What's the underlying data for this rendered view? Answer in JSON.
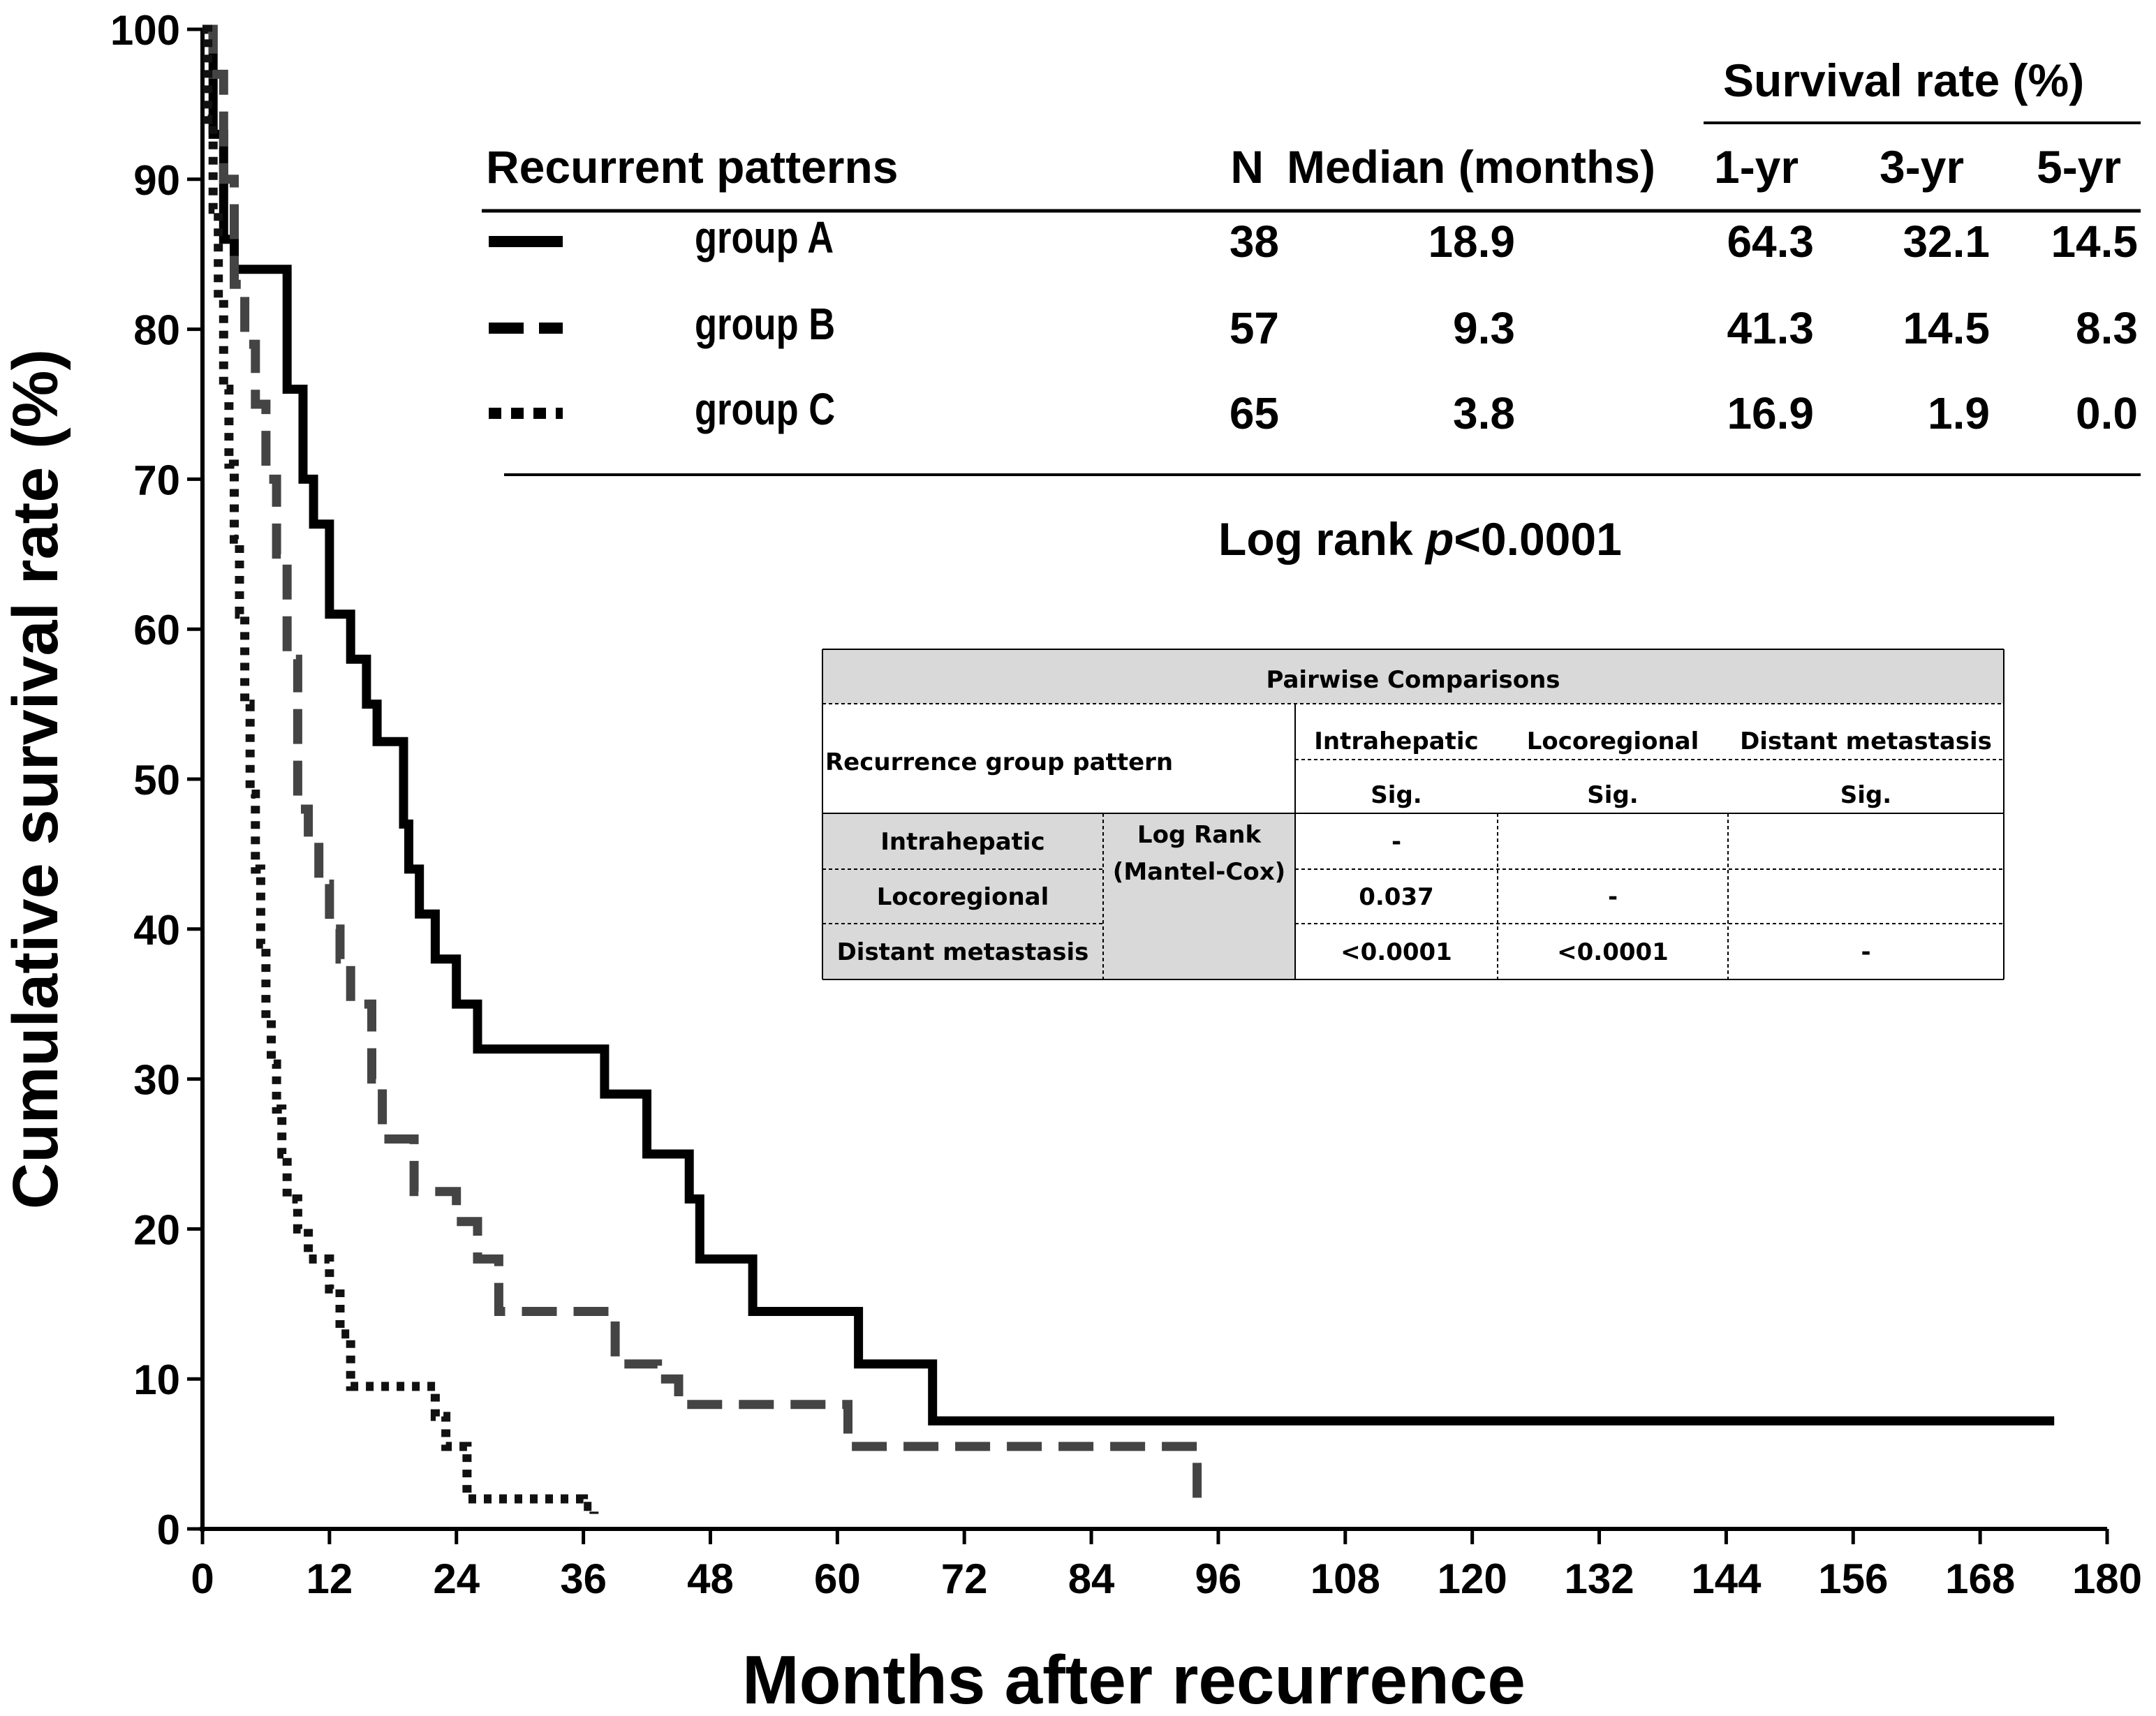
{
  "chart_data": {
    "type": "line",
    "subtype": "kaplan-meier step",
    "xlabel": "Months after recurrence",
    "ylabel": "Cumulative survival rate (%)",
    "xlim": [
      0,
      180
    ],
    "ylim": [
      0,
      100
    ],
    "xticks": [
      0,
      12,
      24,
      36,
      48,
      60,
      72,
      84,
      96,
      108,
      120,
      132,
      144,
      156,
      168,
      180
    ],
    "yticks": [
      0,
      10,
      20,
      30,
      40,
      50,
      60,
      70,
      80,
      90,
      100
    ],
    "series": [
      {
        "name": "group A",
        "style": "solid",
        "x": [
          0,
          1,
          2,
          3,
          8,
          9.5,
          10.5,
          12,
          14,
          15.5,
          16.5,
          19,
          19.5,
          20.5,
          22,
          24,
          26,
          38,
          42,
          46,
          47,
          52,
          62,
          69,
          175
        ],
        "y": [
          100,
          93,
          86,
          84,
          76,
          70,
          67,
          61,
          58,
          55,
          52.5,
          47,
          44,
          41,
          38,
          35,
          32,
          29,
          25,
          22,
          18,
          14.5,
          11,
          7.2,
          7.2
        ]
      },
      {
        "name": "group B",
        "style": "dashed",
        "x": [
          0,
          1,
          2,
          3,
          4,
          5,
          6,
          7,
          8,
          9,
          10,
          11,
          12,
          13,
          14,
          16,
          17,
          20,
          24,
          26,
          28,
          30,
          39,
          43,
          45,
          61,
          94,
          94
        ],
        "y": [
          100,
          97,
          90,
          83,
          79,
          75,
          70,
          65,
          58,
          48,
          46,
          43,
          40,
          38,
          35,
          30,
          26,
          22.5,
          20.5,
          18,
          14.5,
          14.5,
          11,
          10,
          8.3,
          5.5,
          5.5,
          1
        ]
      },
      {
        "name": "group C",
        "style": "dotted",
        "x": [
          0,
          0.5,
          1,
          1.5,
          2,
          2.5,
          3,
          3.5,
          4,
          4.5,
          5,
          5.5,
          6,
          6.5,
          7,
          7.5,
          8,
          9,
          10,
          12,
          13,
          14,
          22,
          23,
          25,
          36,
          37
        ],
        "y": [
          100,
          94,
          88,
          82,
          76,
          71,
          66,
          61,
          55,
          49,
          44,
          39,
          34,
          31,
          28,
          25,
          22,
          20,
          18,
          16,
          13,
          9.5,
          7.5,
          5.5,
          2,
          1.5,
          1
        ]
      }
    ],
    "summary_table": {
      "header_group": "Survival rate (%)",
      "columns": [
        "Recurrent  patterns",
        "N",
        "Median (months)",
        "1-yr",
        "3-yr",
        "5-yr"
      ],
      "rows": [
        {
          "style": "solid",
          "label": "group A",
          "n": "38",
          "median": "18.9",
          "y1": "64.3",
          "y3": "32.1",
          "y5": "14.5"
        },
        {
          "style": "dashed",
          "label": "group B",
          "n": "57",
          "median": "9.3",
          "y1": "41.3",
          "y3": "14.5",
          "y5": "8.3"
        },
        {
          "style": "dotted",
          "label": "group C",
          "n": "65",
          "median": "3.8",
          "y1": "16.9",
          "y3": "1.9",
          "y5": "0.0"
        }
      ],
      "logrank_prefix": "Log rank ",
      "logrank_p": "p",
      "logrank_value": "<0.0001"
    },
    "pairwise_table": {
      "title": "Pairwise Comparisons",
      "row_header": "Recurrence group pattern",
      "col_headers": [
        "Intrahepatic",
        "Locoregional",
        "Distant metastasis"
      ],
      "sig_label": "Sig.",
      "method_line1": "Log Rank",
      "method_line2": "(Mantel-Cox)",
      "rows": [
        {
          "label": "Intrahepatic",
          "values": [
            "-",
            "",
            ""
          ]
        },
        {
          "label": "Locoregional",
          "values": [
            "0.037",
            "-",
            ""
          ]
        },
        {
          "label": "Distant metastasis",
          "values": [
            "<0.0001",
            "<0.0001",
            "-"
          ]
        }
      ]
    },
    "colors": {
      "line": "#000000",
      "dashed": "#444444",
      "dotted": "#111111",
      "table_fill": "#d9d9d9"
    }
  }
}
